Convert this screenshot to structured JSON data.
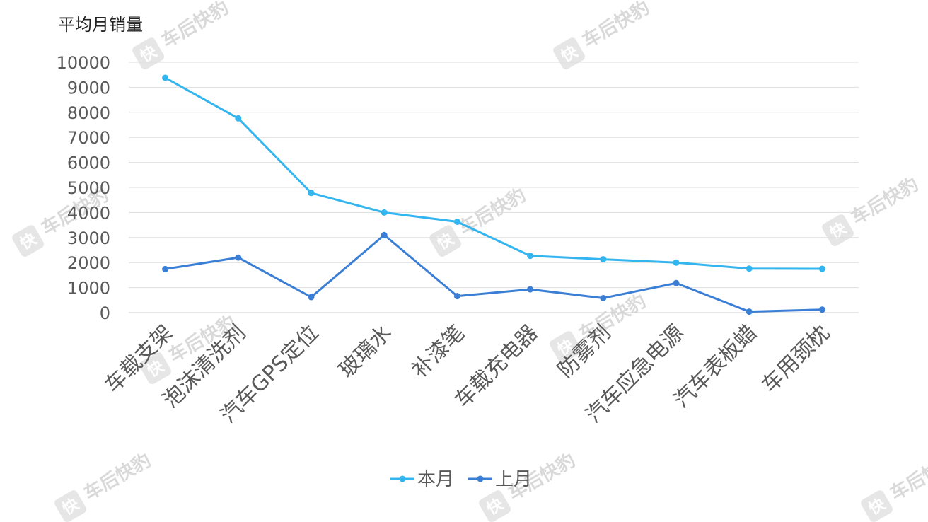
{
  "chart_data": {
    "type": "line",
    "ylabel": "平均月销量",
    "categories": [
      "车载支架",
      "泡沫清洗剂",
      "汽车GPS定位",
      "玻璃水",
      "补漆笔",
      "车载充电器",
      "防雾剂",
      "汽车应急电源",
      "汽车表板蜡",
      "车用颈枕"
    ],
    "series": [
      {
        "name": "本月",
        "color": "#33b5f0",
        "values": [
          9380,
          7760,
          4780,
          4000,
          3630,
          2270,
          2130,
          2000,
          1760,
          1750
        ]
      },
      {
        "name": "上月",
        "color": "#3a7fd5",
        "values": [
          1740,
          2200,
          620,
          3100,
          660,
          930,
          580,
          1180,
          40,
          120
        ]
      }
    ],
    "ylim": [
      0,
      10000
    ],
    "yticks": [
      0,
      1000,
      2000,
      3000,
      4000,
      5000,
      6000,
      7000,
      8000,
      9000,
      10000
    ],
    "grid": true,
    "legend_position": "bottom"
  },
  "watermark": {
    "brand": "车后快豹",
    "icon_char": "快"
  }
}
